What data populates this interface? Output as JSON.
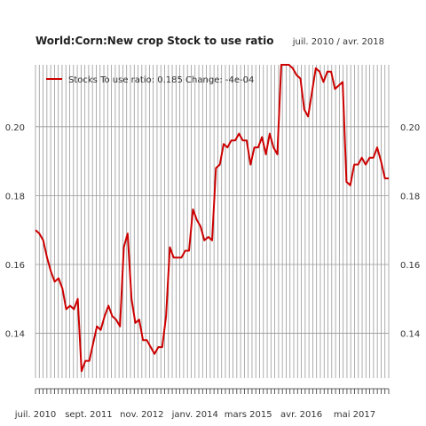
{
  "chart_data": {
    "type": "line",
    "title": "World:Corn:New crop Stock to use ratio",
    "date_range": "juil. 2010 / avr. 2018",
    "legend": {
      "label": "Stocks To use ratio: 0.185  Change: -4e-04",
      "placement": "top-left"
    },
    "series_color": "#cc0000",
    "grid_color": "#999999",
    "grid": true,
    "ylim": [
      0.127,
      0.218
    ],
    "yticks": [
      "0.14",
      "0.16",
      "0.18",
      "0.20"
    ],
    "xticks": [
      "juil. 2010",
      "sept. 2011",
      "nov. 2012",
      "janv. 2014",
      "mars 2015",
      "avr. 2016",
      "mai 2017"
    ],
    "x_start": "2010-07",
    "x_end": "2018-04",
    "series": [
      {
        "values": [
          0.17,
          0.169,
          0.167,
          0.162,
          0.158,
          0.155,
          0.156,
          0.153,
          0.147,
          0.148,
          0.147,
          0.15,
          0.129,
          0.132,
          0.132,
          0.137,
          0.142,
          0.141,
          0.145,
          0.148,
          0.145,
          0.144,
          0.142,
          0.165,
          0.169,
          0.15,
          0.143,
          0.144,
          0.138,
          0.138,
          0.136,
          0.134,
          0.136,
          0.136,
          0.145,
          0.165,
          0.162,
          0.162,
          0.162,
          0.164,
          0.164,
          0.176,
          0.173,
          0.171,
          0.167,
          0.168,
          0.167,
          0.188,
          0.189,
          0.195,
          0.194,
          0.196,
          0.196,
          0.198,
          0.196,
          0.196,
          0.189,
          0.194,
          0.194,
          0.197,
          0.192,
          0.198,
          0.194,
          0.192,
          0.218,
          0.218,
          0.218,
          0.217,
          0.215,
          0.214,
          0.205,
          0.203,
          0.21,
          0.217,
          0.216,
          0.213,
          0.216,
          0.216,
          0.211,
          0.212,
          0.213,
          0.184,
          0.183,
          0.189,
          0.189,
          0.191,
          0.189,
          0.191,
          0.191,
          0.194,
          0.19,
          0.185,
          0.185
        ]
      }
    ]
  }
}
